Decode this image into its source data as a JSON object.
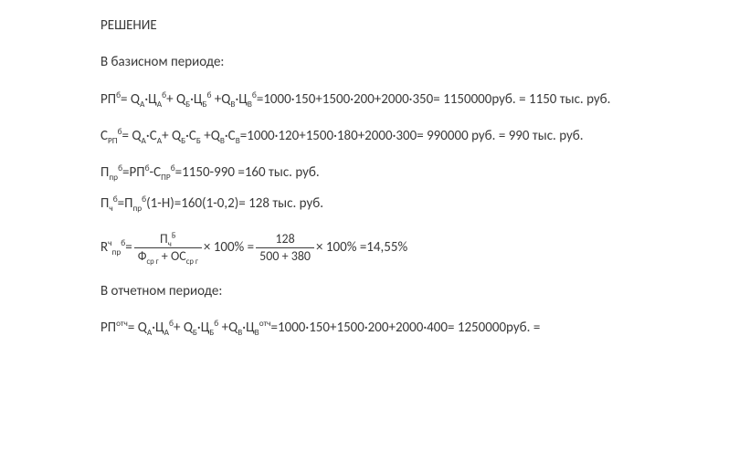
{
  "doc": {
    "font_family": "Calibri/Arial",
    "font_size_pt": 11,
    "text_color": "#3a3a3a",
    "background_color": "#ffffff",
    "line_spacing": 1.35
  },
  "heading": "РЕШЕНИЕ",
  "section_base": "В базисном периоде:",
  "rp_b": {
    "lhs": "РПᵇ= Qᴀ·Цᴀᵇ+ Qᴃ·Цᴃᵇ +Qв·Цвᵇ",
    "calc": "1000·150+1500·200+2000·350",
    "result_rub": "1150000руб.",
    "result_k": "1150 тыс. руб."
  },
  "crp_b": {
    "lhs": "Cᴘᴨᵇ= Qᴀ·Cᴀ+ Qᴃ·Cᴃ +Qв·Cв",
    "calc": "1000·120+1500·180+2000·300",
    "result_rub": "990000 руб.",
    "result_k": "990 тыс. руб."
  },
  "p_pr_b": {
    "lhs": "Пᴨᴩᵇ=РПᵇ-Cᴨᴩᵇ",
    "calc": "1150-990",
    "result": "160 тыс. руб."
  },
  "p_ch_b": {
    "lhs": "Пчᵇ=Пᴨᴩᵇ(1-Н)",
    "calc": "160(1-0,2)",
    "result": "128 тыс. руб."
  },
  "r_line": {
    "lhs_prefix": "Rᶜᴨᴩᵇ=",
    "frac1_num": "П",
    "frac1_num_sub": "ч",
    "frac1_num_sup": "Б",
    "frac1_den_a": "Ф",
    "frac1_den_a_sub": "ср г",
    "frac1_den_plus": " + ОС",
    "frac1_den_b_sub": "ср г",
    "times": " × 100% = ",
    "frac2_num": "128",
    "frac2_den": "500 + 380",
    "tail": " × 100% =14,55%"
  },
  "section_report": "В отчетном периоде:",
  "rp_otc": {
    "lhs": "РПᵒᵗᶜ= Qᴀ·Цᴀᵇ+ Qᴃ·Цᴃᵇ +Qв·Цвᵒᵗᶜ",
    "calc": "1000·150+1500·200+2000·400",
    "result_rub": "1250000руб.",
    "tail": "="
  }
}
